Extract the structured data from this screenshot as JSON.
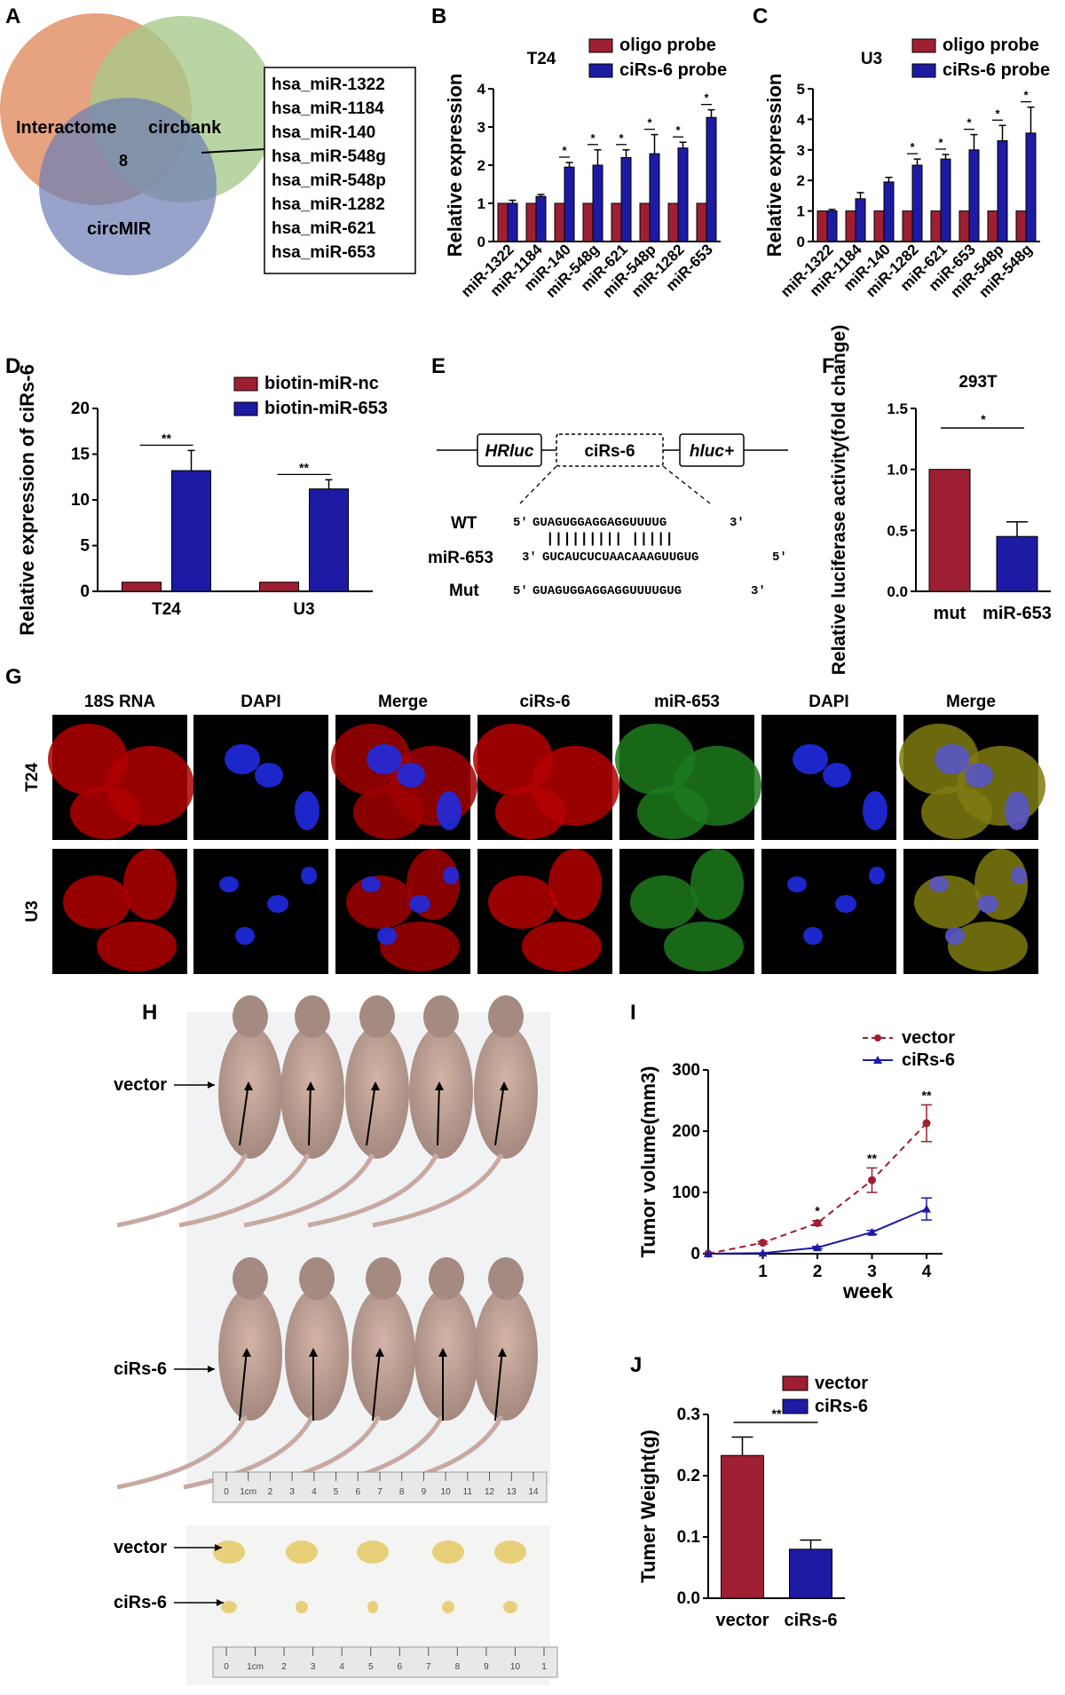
{
  "colors": {
    "red": "#9e1f32",
    "blue": "#1d1aa3",
    "venn_orange": "#e7a27f",
    "venn_green": "#a6c98a",
    "venn_blue": "#6f7fb5"
  },
  "panels": {
    "A": {
      "letter": "A",
      "circles": [
        "Interactome",
        "circbank",
        "circMIR"
      ],
      "overlap_count": "8",
      "mirna_list": [
        "hsa_miR-1322",
        "hsa_miR-1184",
        "hsa_miR-140",
        "hsa_miR-548g",
        "hsa_miR-548p",
        "hsa_miR-1282",
        "hsa_miR-621",
        "hsa_miR-653"
      ]
    },
    "B": {
      "letter": "B"
    },
    "C": {
      "letter": "C"
    },
    "D": {
      "letter": "D"
    },
    "E": {
      "letter": "E",
      "boxes": [
        "HRluc",
        "ciRs-6",
        "hluc+"
      ],
      "rows": [
        {
          "label": "WT",
          "p5": "5'",
          "seq": "GUAGUGGAGGAGGUUUUG",
          "p3": "3'"
        },
        {
          "label": "",
          "p5": "",
          "seq": "|||||||||    |||||",
          "p3": ""
        },
        {
          "label": "miR-653",
          "p5": "3'",
          "seq": "GUCAUCUCUAACAAAGUUGUG",
          "p3": "5'"
        },
        {
          "label": "Mut",
          "p5": "5'",
          "seq": "GUAGUGGAGGAGGUUUUGUG",
          "p3": "3'"
        }
      ]
    },
    "F": {
      "letter": "F"
    },
    "G": {
      "letter": "G",
      "col_labels": [
        "18S RNA",
        "DAPI",
        "Merge",
        "ciRs-6",
        "miR-653",
        "DAPI",
        "Merge"
      ],
      "row_labels": [
        "T24",
        "U3"
      ]
    },
    "H": {
      "letter": "H",
      "row_labels": [
        "vector",
        "ciRs-6",
        "vector",
        "ciRs-6"
      ],
      "ruler1": [
        "0",
        "1cm",
        "2",
        "3",
        "4",
        "5",
        "6",
        "7",
        "8",
        "9",
        "10",
        "11",
        "12",
        "13",
        "14"
      ],
      "ruler2": [
        "0",
        "1cm",
        "2",
        "3",
        "4",
        "5",
        "6",
        "7",
        "8",
        "9",
        "10",
        "1"
      ]
    },
    "I": {
      "letter": "I"
    },
    "J": {
      "letter": "J"
    }
  },
  "chart_data": [
    {
      "id": "B",
      "type": "bar",
      "title": "T24",
      "ylabel": "Relative expression",
      "ylim": [
        0,
        4
      ],
      "yticks": [
        0,
        1,
        2,
        3,
        4
      ],
      "categories": [
        "miR-1322",
        "miR-1184",
        "miR-140",
        "miR-548g",
        "miR-621",
        "miR-548p",
        "miR-1282",
        "miR-653"
      ],
      "series": [
        {
          "name": "oligo probe",
          "color": "#9e1f32",
          "values": [
            1,
            1,
            1,
            1,
            1,
            1,
            1,
            1
          ],
          "errors": [
            0,
            0,
            0,
            0,
            0,
            0,
            0,
            0
          ]
        },
        {
          "name": "ciRs-6 probe",
          "color": "#1d1aa3",
          "values": [
            1.0,
            1.18,
            1.95,
            2.0,
            2.2,
            2.3,
            2.45,
            3.25
          ],
          "errors": [
            0.08,
            0.05,
            0.12,
            0.4,
            0.2,
            0.5,
            0.15,
            0.2
          ]
        }
      ],
      "significance": [
        "",
        "",
        "*",
        "*",
        "*",
        "*",
        "*",
        "*"
      ],
      "legend": "top-right"
    },
    {
      "id": "C",
      "type": "bar",
      "title": "U3",
      "ylabel": "Relative expression",
      "ylim": [
        0,
        5
      ],
      "yticks": [
        0,
        1,
        2,
        3,
        4,
        5
      ],
      "categories": [
        "miR-1322",
        "miR-1184",
        "miR-140",
        "miR-1282",
        "miR-621",
        "miR-653",
        "miR-548p",
        "miR-548g"
      ],
      "series": [
        {
          "name": "oligo probe",
          "color": "#9e1f32",
          "values": [
            1,
            1,
            1,
            1,
            1,
            1,
            1,
            1
          ],
          "errors": [
            0,
            0,
            0,
            0,
            0,
            0,
            0,
            0
          ]
        },
        {
          "name": "ciRs-6 probe",
          "color": "#1d1aa3",
          "values": [
            1.0,
            1.4,
            1.95,
            2.5,
            2.7,
            3.0,
            3.3,
            3.55
          ],
          "errors": [
            0.05,
            0.2,
            0.15,
            0.2,
            0.15,
            0.5,
            0.5,
            0.85
          ]
        }
      ],
      "significance": [
        "",
        "",
        "",
        "*",
        "*",
        "*",
        "*",
        "*"
      ],
      "legend": "top-right"
    },
    {
      "id": "D",
      "type": "bar",
      "title": "",
      "ylabel": "Relative expression of ciRs-6",
      "ylim": [
        0,
        20
      ],
      "yticks": [
        0,
        5,
        10,
        15,
        20
      ],
      "categories": [
        "T24",
        "U3"
      ],
      "series": [
        {
          "name": "biotin-miR-nc",
          "color": "#9e1f32",
          "values": [
            1,
            1
          ],
          "errors": [
            0,
            0
          ]
        },
        {
          "name": "biotin-miR-653",
          "color": "#1d1aa3",
          "values": [
            13.2,
            11.2
          ],
          "errors": [
            2.2,
            1.0
          ]
        }
      ],
      "significance": [
        "**",
        "**"
      ],
      "legend": "top-right"
    },
    {
      "id": "F",
      "type": "bar",
      "title": "293T",
      "ylabel": "Relative luciferase activity(fold change)",
      "ylim": [
        0,
        1.5
      ],
      "yticks": [
        "0.0",
        "0.5",
        "1.0",
        "1.5"
      ],
      "categories": [
        "mut",
        "miR-653"
      ],
      "series": [
        {
          "values": [
            1.0,
            0.45
          ],
          "errors": [
            0,
            0.12
          ],
          "colors": [
            "#9e1f32",
            "#1d1aa3"
          ]
        }
      ],
      "significance": [
        "*"
      ]
    },
    {
      "id": "I",
      "type": "line",
      "title": "",
      "xlabel": "week",
      "ylabel": "Tumor volume(mm3)",
      "ylim": [
        0,
        300
      ],
      "yticks": [
        0,
        100,
        200,
        300
      ],
      "x": [
        0,
        1,
        2,
        3,
        4
      ],
      "series": [
        {
          "name": "vector",
          "color": "#9e1f32",
          "style": "dashed",
          "values": [
            0,
            18,
            50,
            120,
            213
          ],
          "errors": [
            0,
            2,
            4,
            20,
            30
          ]
        },
        {
          "name": "ciRs-6",
          "color": "#1d1aa3",
          "style": "solid",
          "values": [
            0,
            1,
            10,
            35,
            73
          ],
          "errors": [
            0,
            0,
            2,
            3,
            18
          ]
        }
      ],
      "significance": [
        "",
        "",
        "*",
        "**",
        "**"
      ],
      "legend": "top-right"
    },
    {
      "id": "J",
      "type": "bar",
      "title": "",
      "ylabel": "Tumer Weight(g)",
      "ylim": [
        0,
        0.3
      ],
      "yticks": [
        "0.0",
        "0.1",
        "0.2",
        "0.3"
      ],
      "categories": [
        "vector",
        "ciRs-6"
      ],
      "series": [
        {
          "values": [
            0.233,
            0.08
          ],
          "errors": [
            0.03,
            0.015
          ],
          "colors": [
            "#9e1f32",
            "#1d1aa3"
          ]
        }
      ],
      "legend_entries": [
        {
          "name": "vector",
          "color": "#9e1f32"
        },
        {
          "name": "ciRs-6",
          "color": "#1d1aa3"
        }
      ],
      "significance": [
        "**"
      ],
      "legend": "top-right"
    }
  ]
}
